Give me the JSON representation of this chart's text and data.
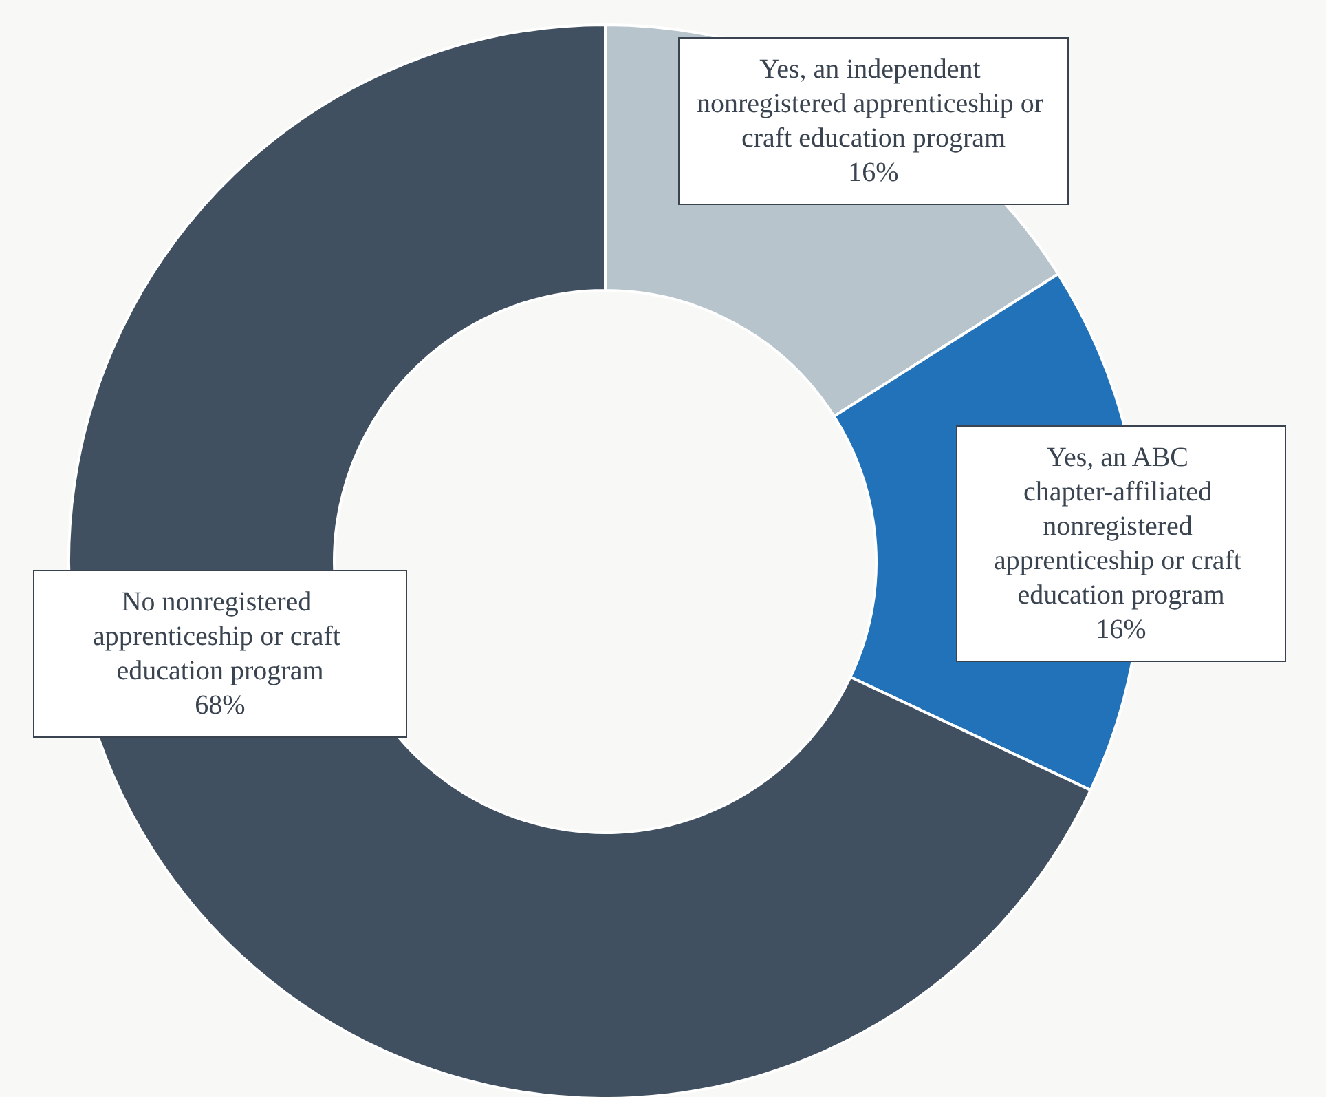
{
  "chart_data": {
    "type": "donut",
    "categories": [
      "Yes, an independent nonregistered apprenticeship or craft education program",
      "Yes, an ABC chapter-affiliated nonregistered apprenticeship or craft education program",
      "No nonregistered apprenticeship or craft education program"
    ],
    "values": [
      16,
      16,
      68
    ],
    "colors": [
      "#b7c4cc",
      "#2272b9",
      "#415060"
    ],
    "value_labels": [
      "16%",
      "16%",
      "68%"
    ],
    "legend": false
  }
}
